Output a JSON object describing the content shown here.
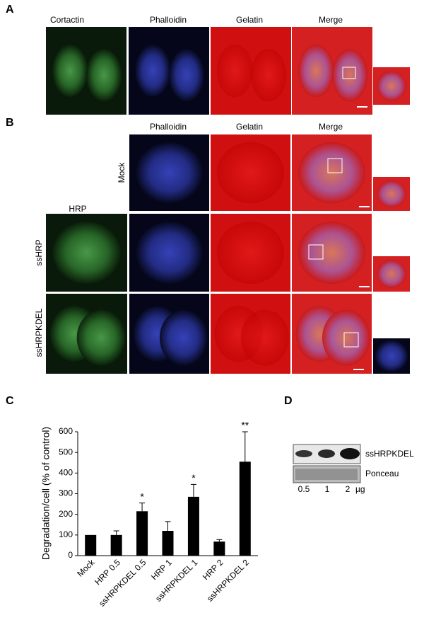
{
  "panel_a": {
    "label": "A",
    "columns": [
      "Cortactin",
      "Phalloidin",
      "Gelatin",
      "Merge"
    ]
  },
  "panel_b": {
    "label": "B",
    "columns": [
      "Phalloidin",
      "Gelatin",
      "Merge"
    ],
    "hrp_column": "HRP",
    "rows": [
      "Mock",
      "ssHRP",
      "ssHRPKDEL"
    ]
  },
  "chart_data": {
    "type": "bar",
    "panel_label": "C",
    "ylabel": "Degradation/cell (% of control)",
    "categories": [
      "Mock",
      "HRP 0.5",
      "ssHRPKDEL 0.5",
      "HRP 1",
      "ssHRPKDEL 1",
      "HRP 2",
      "ssHRPKDEL 2"
    ],
    "values": [
      100,
      100,
      215,
      120,
      285,
      68,
      455
    ],
    "errors": [
      0,
      20,
      40,
      45,
      60,
      10,
      145
    ],
    "annotations": [
      null,
      null,
      "*",
      null,
      "*",
      null,
      "**"
    ],
    "color": "#000000",
    "ylim": [
      0,
      600
    ],
    "yticks": [
      0,
      100,
      200,
      300,
      400,
      500,
      600
    ]
  },
  "panel_d": {
    "label": "D",
    "bands": [
      "ssHRPKDEL",
      "Ponceau"
    ],
    "lanes": [
      "0.5",
      "1",
      "2"
    ],
    "unit": "µg"
  }
}
